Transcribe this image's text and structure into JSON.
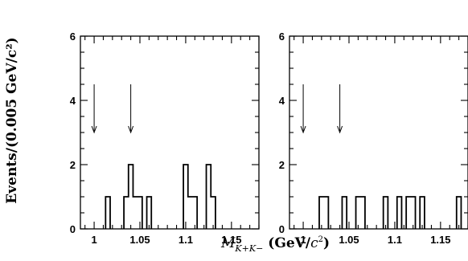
{
  "chart_data": [
    {
      "type": "bar",
      "panel": "left",
      "bin_width": 0.005,
      "xlim": [
        0.985,
        1.18
      ],
      "ylim": [
        0,
        6
      ],
      "x_ticks": [
        "1",
        "1.05",
        "1.1",
        "1.15"
      ],
      "x_tick_values": [
        1.0,
        1.05,
        1.1,
        1.15
      ],
      "y_ticks": [
        "0",
        "2",
        "4",
        "6"
      ],
      "y_tick_values": [
        0,
        2,
        4,
        6
      ],
      "bins": [
        {
          "x": 1.015,
          "y": 1
        },
        {
          "x": 1.035,
          "y": 1
        },
        {
          "x": 1.04,
          "y": 0
        },
        {
          "x": 1.04,
          "y": 2
        },
        {
          "x": 1.045,
          "y": 1
        },
        {
          "x": 1.05,
          "y": 1
        },
        {
          "x": 1.06,
          "y": 1
        },
        {
          "x": 1.1,
          "y": 2
        },
        {
          "x": 1.105,
          "y": 1
        },
        {
          "x": 1.11,
          "y": 1
        },
        {
          "x": 1.125,
          "y": 2
        },
        {
          "x": 1.13,
          "y": 1
        }
      ],
      "arrows_x": [
        1.0,
        1.04
      ]
    },
    {
      "type": "bar",
      "panel": "right",
      "bin_width": 0.005,
      "xlim": [
        0.985,
        1.18
      ],
      "ylim": [
        0,
        6
      ],
      "x_ticks": [
        "1",
        "1.05",
        "1.1",
        "1.15"
      ],
      "x_tick_values": [
        1.0,
        1.05,
        1.1,
        1.15
      ],
      "y_ticks": [
        "0",
        "2",
        "4",
        "6"
      ],
      "y_tick_values": [
        0,
        2,
        4,
        6
      ],
      "bins": [
        {
          "x": 1.02,
          "y": 1
        },
        {
          "x": 1.025,
          "y": 1
        },
        {
          "x": 1.045,
          "y": 1
        },
        {
          "x": 1.06,
          "y": 1
        },
        {
          "x": 1.065,
          "y": 1
        },
        {
          "x": 1.09,
          "y": 1
        },
        {
          "x": 1.105,
          "y": 1
        },
        {
          "x": 1.115,
          "y": 1
        },
        {
          "x": 1.12,
          "y": 1
        },
        {
          "x": 1.13,
          "y": 1
        },
        {
          "x": 1.17,
          "y": 1
        }
      ],
      "arrows_x": [
        1.0,
        1.04
      ]
    }
  ],
  "labels": {
    "ylabel": "Events/(0.005 GeV/c²)",
    "xlabel_symbol": "M",
    "xlabel_subscript": "K+K−",
    "xlabel_units_pre": "(GeV/",
    "xlabel_units_c": "c",
    "xlabel_units_sup": "2",
    "xlabel_units_post": ")"
  }
}
